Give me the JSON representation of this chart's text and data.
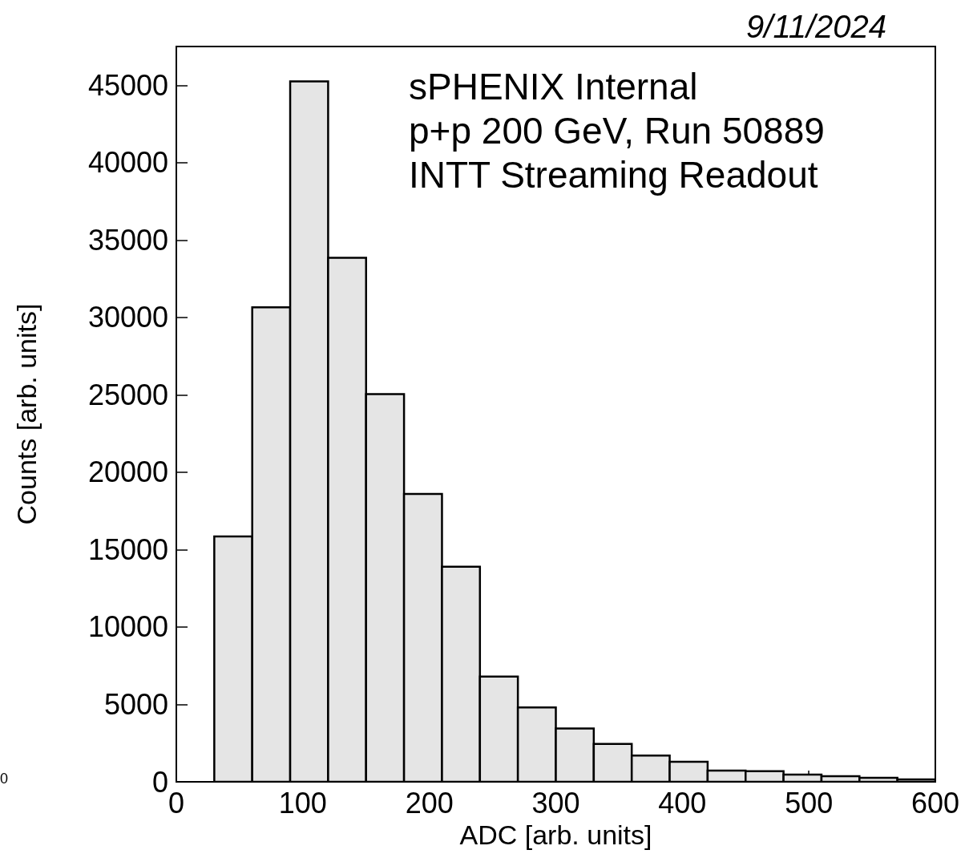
{
  "chart_data": {
    "type": "histogram",
    "title": "9/11/2024",
    "xlabel": "ADC [arb. units]",
    "ylabel": "Counts [arb. units]",
    "bins": [
      0,
      30,
      60,
      90,
      120,
      150,
      180,
      210,
      240,
      270,
      300,
      330,
      360,
      390,
      420,
      450,
      480,
      510,
      540,
      570,
      600
    ],
    "values": [
      0,
      15850,
      30650,
      45250,
      33850,
      25050,
      18600,
      13900,
      6800,
      4800,
      3450,
      2450,
      1700,
      1300,
      720,
      680,
      470,
      360,
      260,
      160
    ],
    "color": "#e5e5e5",
    "xlim": [
      0,
      600
    ],
    "xticks": [
      0,
      100,
      200,
      300,
      400,
      500,
      600
    ],
    "ylim": [
      0,
      47500
    ],
    "yticks": [
      0,
      5000,
      10000,
      15000,
      20000,
      25000,
      30000,
      35000,
      40000,
      45000
    ],
    "grid": false,
    "annotations": [
      "sPHENIX Internal",
      "p+p 200 GeV, Run 50889",
      "INTT Streaming Readout",
      "0"
    ]
  }
}
